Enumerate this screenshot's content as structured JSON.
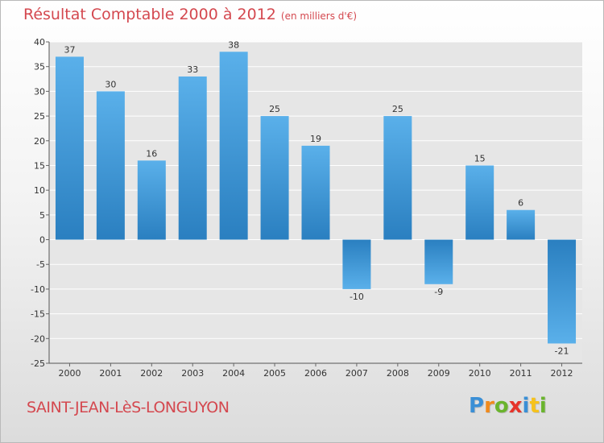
{
  "header": {
    "title": "Résultat Comptable 2000 à 2012",
    "subtitle": "(en milliers d'€)"
  },
  "footer": {
    "commune": "SAINT-JEAN-LèS-LONGUYON"
  },
  "brand": {
    "letters": [
      {
        "char": "P",
        "color": "#3a8fd6"
      },
      {
        "char": "r",
        "color": "#f08a1c"
      },
      {
        "char": "o",
        "color": "#6ab42d"
      },
      {
        "char": "x",
        "color": "#e6332a"
      },
      {
        "char": "i",
        "color": "#3a8fd6"
      },
      {
        "char": "t",
        "color": "#f6c21c"
      },
      {
        "char": "i",
        "color": "#6ab42d"
      }
    ]
  },
  "chart_data": {
    "type": "bar",
    "title": "Résultat Comptable 2000 à 2012",
    "xlabel": "",
    "ylabel": "",
    "categories": [
      "2000",
      "2001",
      "2002",
      "2003",
      "2004",
      "2005",
      "2006",
      "2007",
      "2008",
      "2009",
      "2010",
      "2011",
      "2012"
    ],
    "values": [
      37,
      30,
      16,
      33,
      38,
      25,
      19,
      -10,
      25,
      -9,
      15,
      6,
      -21
    ],
    "ylim": [
      -25,
      40
    ],
    "yticks": [
      40,
      35,
      30,
      25,
      20,
      15,
      10,
      5,
      0,
      -5,
      -10,
      -15,
      -20,
      -25
    ],
    "grid": true,
    "colors": {
      "bar_light": "#5ab0ea",
      "bar_dark": "#2a7fc0",
      "grid": "#ffffff"
    }
  }
}
